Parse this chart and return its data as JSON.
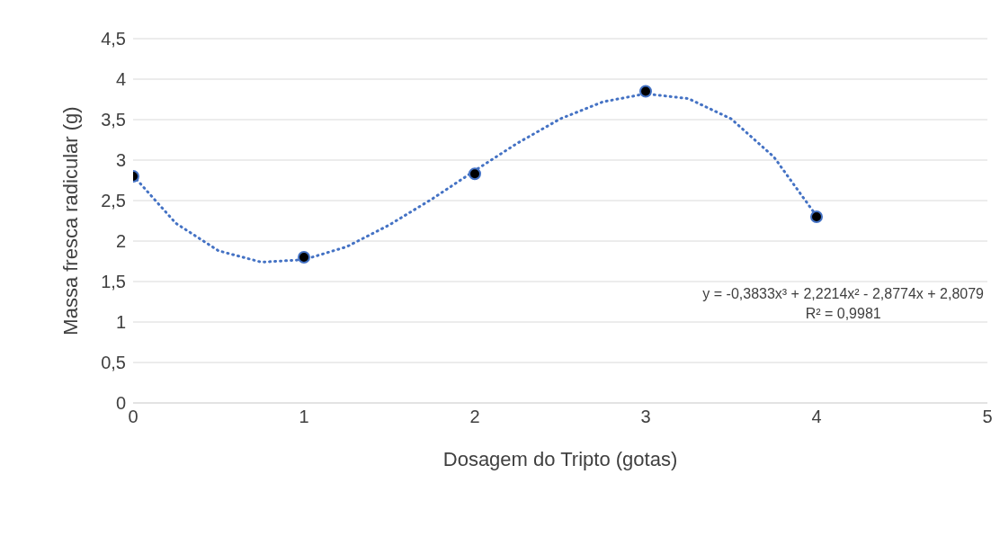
{
  "chart_data": {
    "type": "scatter",
    "xlabel": "Dosagem do Tripto (gotas)",
    "ylabel": "Massa fresca radicular (g)",
    "xlim": [
      0,
      5
    ],
    "xticks": [
      0,
      1,
      2,
      3,
      4,
      5
    ],
    "ylim": [
      0,
      4.5
    ],
    "yticks": [
      0,
      {
        "value": 0.5,
        "label": "0,5"
      },
      1,
      {
        "value": 1.5,
        "label": "1,5"
      },
      2,
      {
        "value": 2.5,
        "label": "2,5"
      },
      3,
      {
        "value": 3.5,
        "label": "3,5"
      },
      4,
      {
        "value": 4.5,
        "label": "4,5"
      }
    ],
    "grid": "y",
    "marker": "circle",
    "series": [
      {
        "type": "scatter",
        "color": "#000000",
        "x": [
          0,
          1,
          2,
          3,
          4
        ],
        "values": [
          2.8,
          1.8,
          2.83,
          3.85,
          2.3
        ]
      },
      {
        "type": "line",
        "color": "#4472c4",
        "line_style": "dotted",
        "marker": "none",
        "x": [
          0,
          0.25,
          0.5,
          0.75,
          1,
          1.25,
          1.5,
          1.75,
          2,
          2.25,
          2.5,
          2.75,
          3,
          3.25,
          3.5,
          3.75,
          4
        ],
        "values": [
          2.81,
          2.22,
          1.88,
          1.74,
          1.77,
          1.93,
          2.2,
          2.52,
          2.87,
          3.21,
          3.51,
          3.72,
          3.82,
          3.76,
          3.51,
          3.04,
          2.31
        ]
      }
    ],
    "annotations": [
      "y = -0,3833x³ + 2,2214x² - 2,8774x + 2,8079",
      "R² = 0,9981"
    ]
  }
}
